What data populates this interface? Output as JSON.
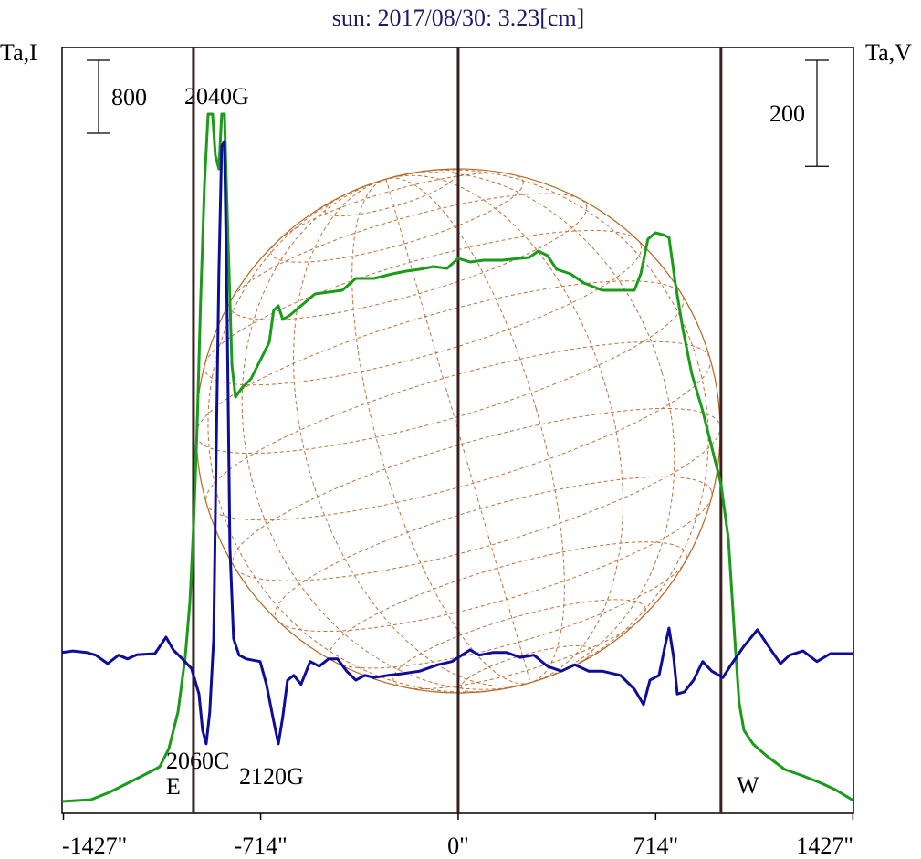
{
  "chart_data": {
    "type": "line",
    "title": "sun: 2017/08/30: 3.23[cm]",
    "ylabel": "Ta,I",
    "y2label": "Ta,V",
    "xlim": [
      -1432,
      1429
    ],
    "xticks": [
      {
        "value": -1427,
        "label": "-1427\""
      },
      {
        "value": -714,
        "label": "-714\""
      },
      {
        "value": 0,
        "label": "0\""
      },
      {
        "value": 714,
        "label": "714\""
      },
      {
        "value": 1427,
        "label": "1427\""
      }
    ],
    "ylim": [
      0,
      8390
    ],
    "y2lim": [
      -301,
      1142
    ],
    "scale_bars": [
      {
        "value": 800,
        "axis": "y"
      },
      {
        "value": 200,
        "axis": "y2"
      }
    ],
    "vertical_lines": [
      -957,
      0,
      950
    ],
    "annotations": [
      "2040G",
      "2060C",
      "2120G",
      "E",
      "W"
    ],
    "series": [
      {
        "name": "Ta,I",
        "color": "#1a9c1a",
        "x": [
          -1432,
          -1327,
          -1261,
          -1195,
          -1129,
          -1079,
          -1046,
          -1013,
          -987,
          -970,
          -957,
          -944,
          -931,
          -917,
          -904,
          -888,
          -878,
          -865,
          -855,
          -845,
          -832,
          -818,
          -805,
          -782,
          -749,
          -716,
          -683,
          -667,
          -650,
          -634,
          -607,
          -568,
          -518,
          -469,
          -419,
          -370,
          -304,
          -238,
          -188,
          -139,
          -89,
          -40,
          0,
          43,
          92,
          158,
          224,
          257,
          290,
          323,
          356,
          406,
          455,
          521,
          587,
          637,
          660,
          686,
          713,
          739,
          762,
          785,
          812,
          845,
          884,
          917,
          950,
          977,
          1000,
          1016,
          1033,
          1066,
          1115,
          1181,
          1247,
          1313,
          1363,
          1429
        ],
        "values": [
          130,
          150,
          230,
          330,
          430,
          510,
          710,
          1110,
          1710,
          2310,
          3110,
          4210,
          5610,
          6910,
          7660,
          7660,
          7210,
          7060,
          7660,
          7660,
          6310,
          4910,
          4560,
          4660,
          4760,
          4960,
          5160,
          5510,
          5560,
          5410,
          5460,
          5560,
          5690,
          5710,
          5730,
          5860,
          5860,
          5910,
          5940,
          5960,
          5990,
          5970,
          6080,
          6040,
          6060,
          6060,
          6080,
          6090,
          6160,
          6110,
          5960,
          5910,
          5810,
          5730,
          5730,
          5730,
          5910,
          6290,
          6360,
          6340,
          6310,
          5810,
          5310,
          4810,
          4410,
          4010,
          3610,
          3010,
          1910,
          1210,
          910,
          760,
          630,
          480,
          410,
          330,
          260,
          140
        ]
      },
      {
        "name": "Ta,V",
        "color": "#0d0d99",
        "axis": "y2",
        "x": [
          -1432,
          -1393,
          -1343,
          -1310,
          -1267,
          -1228,
          -1195,
          -1162,
          -1096,
          -1056,
          -1030,
          -997,
          -964,
          -937,
          -924,
          -911,
          -898,
          -884,
          -875,
          -865,
          -855,
          -845,
          -835,
          -825,
          -812,
          -792,
          -766,
          -716,
          -693,
          -667,
          -650,
          -634,
          -617,
          -594,
          -568,
          -535,
          -502,
          -469,
          -436,
          -403,
          -370,
          -337,
          -304,
          -254,
          -205,
          -139,
          -73,
          -23,
          43,
          76,
          125,
          175,
          224,
          274,
          323,
          373,
          422,
          472,
          521,
          587,
          637,
          670,
          693,
          726,
          746,
          762,
          779,
          792,
          818,
          851,
          884,
          917,
          957,
          983,
          1033,
          1082,
          1115,
          1165,
          1198,
          1247,
          1297,
          1346,
          1429
        ],
        "values": [
          2,
          5,
          2,
          -3,
          -19,
          -3,
          -10,
          -2,
          0,
          31,
          7,
          -10,
          -28,
          -76,
          -144,
          -170,
          -110,
          28,
          372,
          716,
          956,
          965,
          630,
          200,
          28,
          -3,
          -10,
          -15,
          -58,
          -127,
          -170,
          -119,
          -50,
          -41,
          -58,
          -15,
          -24,
          -10,
          -10,
          -33,
          -50,
          -41,
          -45,
          -41,
          -38,
          -33,
          -21,
          -15,
          7,
          -3,
          2,
          2,
          -7,
          -3,
          -24,
          -33,
          -21,
          -33,
          -33,
          -41,
          -67,
          -96,
          -50,
          -41,
          10,
          48,
          -7,
          -76,
          -72,
          -50,
          -15,
          -33,
          -45,
          -24,
          14,
          45,
          19,
          -19,
          -3,
          5,
          -15,
          0,
          0
        ]
      }
    ]
  }
}
